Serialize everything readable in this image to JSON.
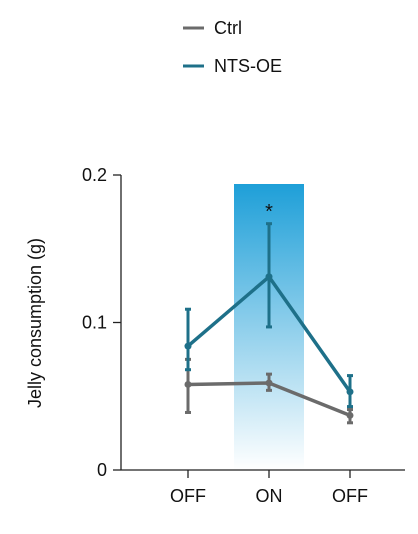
{
  "colors": {
    "ctrl": "#6b6b6b",
    "nts": "#1e7089",
    "axis": "#222222",
    "band_top": "#1e9fd8",
    "band_bottom": "#ffffff"
  },
  "chart_data": {
    "type": "line",
    "categories": [
      "OFF",
      "ON",
      "OFF"
    ],
    "ylabel": "Jelly consumption (g)",
    "xlabel": "",
    "ylim": [
      0,
      0.2
    ],
    "yticks": [
      0,
      0.1,
      0.2
    ],
    "ytick_labels": [
      "0",
      "0.1",
      "0.2"
    ],
    "grid": false,
    "legend_position": "top-center",
    "highlight": {
      "category": "ON",
      "style": "blue gradient band"
    },
    "annotations": [
      {
        "category": "ON",
        "text": "*"
      }
    ],
    "series": [
      {
        "name": "Ctrl",
        "color": "#6b6b6b",
        "values": [
          0.058,
          0.059,
          0.037
        ],
        "error_low": [
          0.039,
          0.054,
          0.032
        ],
        "error_high": [
          0.075,
          0.065,
          0.041
        ]
      },
      {
        "name": "NTS-OE",
        "color": "#1e7089",
        "values": [
          0.084,
          0.131,
          0.053
        ],
        "error_low": [
          0.068,
          0.097,
          0.043
        ],
        "error_high": [
          0.109,
          0.167,
          0.064
        ]
      }
    ]
  }
}
